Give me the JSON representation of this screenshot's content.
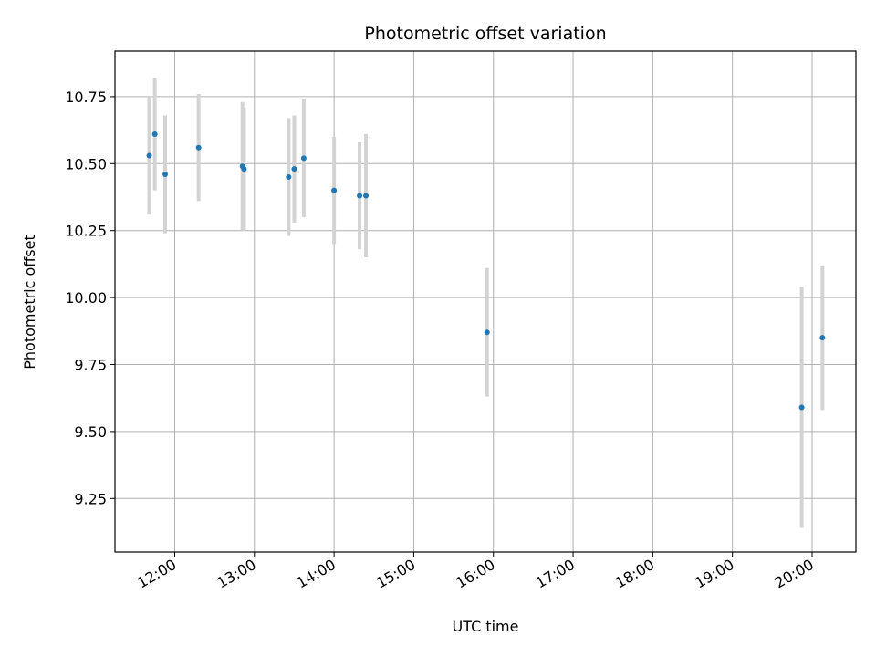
{
  "chart_data": {
    "type": "scatter",
    "title": "Photometric offset variation",
    "xlabel": "UTC time",
    "ylabel": "Photometric offset",
    "x_unit": "hours (UTC)",
    "xlim": [
      11.25,
      20.55
    ],
    "ylim": [
      9.05,
      10.92
    ],
    "grid": true,
    "x_ticks": [
      {
        "value": 12,
        "label": "12:00"
      },
      {
        "value": 13,
        "label": "13:00"
      },
      {
        "value": 14,
        "label": "14:00"
      },
      {
        "value": 15,
        "label": "15:00"
      },
      {
        "value": 16,
        "label": "16:00"
      },
      {
        "value": 17,
        "label": "17:00"
      },
      {
        "value": 18,
        "label": "18:00"
      },
      {
        "value": 19,
        "label": "19:00"
      },
      {
        "value": 20,
        "label": "20:00"
      }
    ],
    "y_ticks": [
      {
        "value": 9.25,
        "label": "9.25"
      },
      {
        "value": 9.5,
        "label": "9.50"
      },
      {
        "value": 9.75,
        "label": "9.75"
      },
      {
        "value": 10.0,
        "label": "10.00"
      },
      {
        "value": 10.25,
        "label": "10.25"
      },
      {
        "value": 10.5,
        "label": "10.50"
      },
      {
        "value": 10.75,
        "label": "10.75"
      }
    ],
    "series": [
      {
        "name": "offset",
        "marker_color": "#1f77b4",
        "errorbar_color": "#d3d3d3",
        "points": [
          {
            "x": 11.68,
            "y": 10.53,
            "err": 0.22
          },
          {
            "x": 11.75,
            "y": 10.61,
            "err": 0.21
          },
          {
            "x": 11.88,
            "y": 10.46,
            "err": 0.22
          },
          {
            "x": 12.3,
            "y": 10.56,
            "err": 0.2
          },
          {
            "x": 12.85,
            "y": 10.49,
            "err": 0.24
          },
          {
            "x": 12.87,
            "y": 10.48,
            "err": 0.23
          },
          {
            "x": 13.43,
            "y": 10.45,
            "err": 0.22
          },
          {
            "x": 13.5,
            "y": 10.48,
            "err": 0.2
          },
          {
            "x": 13.62,
            "y": 10.52,
            "err": 0.22
          },
          {
            "x": 14.0,
            "y": 10.4,
            "err": 0.2
          },
          {
            "x": 14.32,
            "y": 10.38,
            "err": 0.2
          },
          {
            "x": 14.4,
            "y": 10.38,
            "err": 0.23
          },
          {
            "x": 15.92,
            "y": 9.87,
            "err": 0.24
          },
          {
            "x": 19.87,
            "y": 9.59,
            "err": 0.45
          },
          {
            "x": 20.13,
            "y": 9.85,
            "err": 0.27
          }
        ]
      }
    ]
  }
}
